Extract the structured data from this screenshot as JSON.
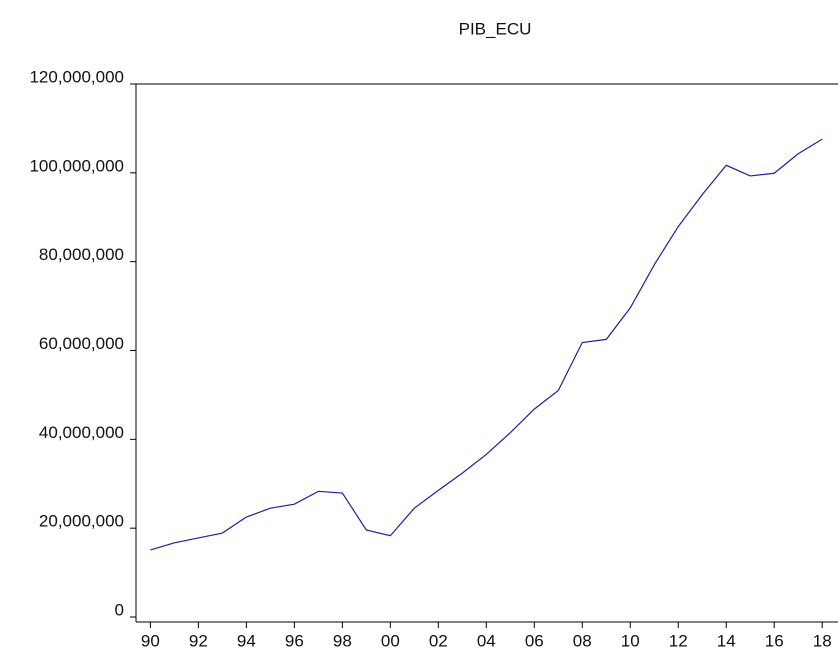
{
  "chart_data": {
    "type": "line",
    "title": "PIB_ECU",
    "x": [
      1990,
      1991,
      1992,
      1993,
      1994,
      1995,
      1996,
      1997,
      1998,
      1999,
      2000,
      2001,
      2002,
      2003,
      2004,
      2005,
      2006,
      2007,
      2008,
      2009,
      2010,
      2011,
      2012,
      2013,
      2014,
      2015,
      2016,
      2017,
      2018
    ],
    "series": [
      {
        "name": "PIB_ECU",
        "color": "#1f1fa0",
        "values": [
          15100000,
          16700000,
          17800000,
          18900000,
          22500000,
          24500000,
          25400000,
          28300000,
          27900000,
          19600000,
          18300000,
          24500000,
          28500000,
          32400000,
          36600000,
          41500000,
          46800000,
          51000000,
          61800000,
          62500000,
          69600000,
          79300000,
          87900000,
          95100000,
          101700000,
          99300000,
          99900000,
          104300000,
          107600000
        ]
      }
    ],
    "xlim": [
      1989.4,
      2018.45
    ],
    "xticks": [
      {
        "value": 1990,
        "label": "90"
      },
      {
        "value": 1992,
        "label": "92"
      },
      {
        "value": 1994,
        "label": "94"
      },
      {
        "value": 1996,
        "label": "96"
      },
      {
        "value": 1998,
        "label": "98"
      },
      {
        "value": 2000,
        "label": "00"
      },
      {
        "value": 2002,
        "label": "02"
      },
      {
        "value": 2004,
        "label": "04"
      },
      {
        "value": 2006,
        "label": "06"
      },
      {
        "value": 2008,
        "label": "08"
      },
      {
        "value": 2010,
        "label": "10"
      },
      {
        "value": 2012,
        "label": "12"
      },
      {
        "value": 2014,
        "label": "14"
      },
      {
        "value": 2016,
        "label": "16"
      },
      {
        "value": 2018,
        "label": "18"
      }
    ],
    "ylim": [
      0,
      120000000
    ],
    "yticks": [
      0,
      {
        "value": 20000000,
        "label": "20,000,000"
      },
      {
        "value": 40000000,
        "label": "40,000,000"
      },
      {
        "value": 60000000,
        "label": "60,000,000"
      },
      {
        "value": 80000000,
        "label": "80,000,000"
      },
      {
        "value": 100000000,
        "label": "100,000,000"
      },
      {
        "value": 120000000,
        "label": "120,000,000"
      }
    ]
  }
}
